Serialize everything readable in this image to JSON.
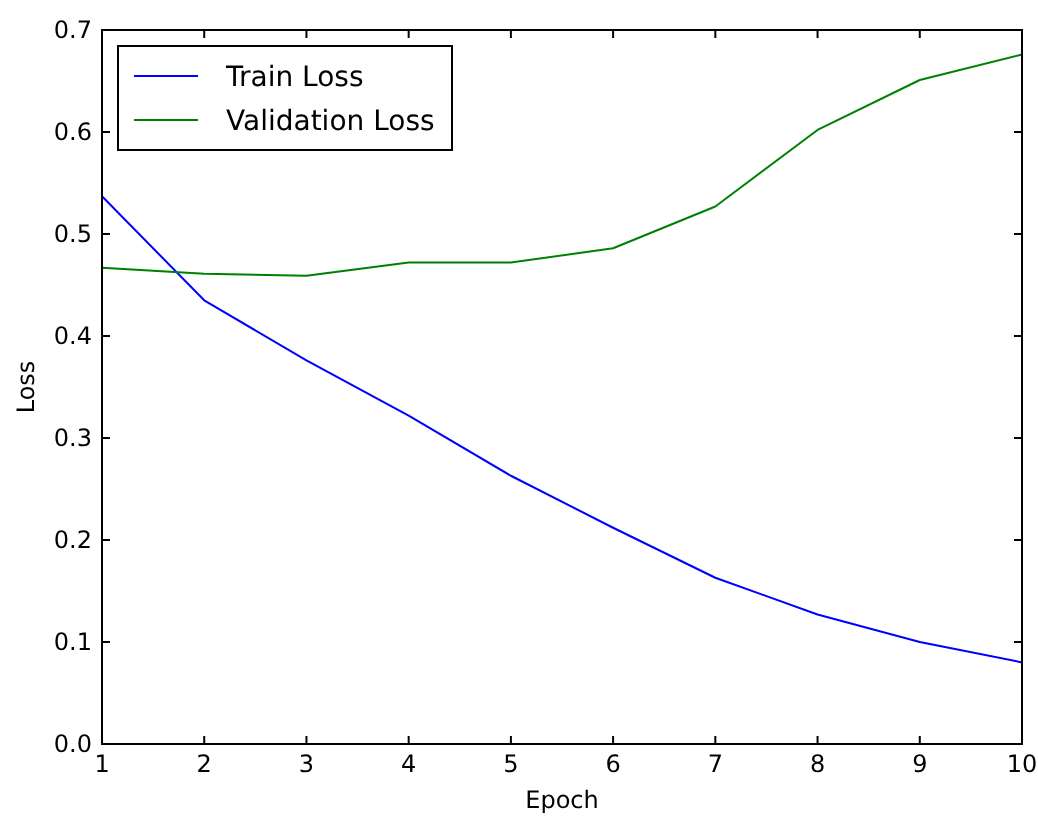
{
  "chart_data": {
    "type": "line",
    "xlabel": "Epoch",
    "ylabel": "Loss",
    "x": [
      1,
      2,
      3,
      4,
      5,
      6,
      7,
      8,
      9,
      10
    ],
    "series": [
      {
        "name": "Train Loss",
        "color": "#0000ff",
        "values": [
          0.537,
          0.435,
          0.376,
          0.322,
          0.263,
          0.212,
          0.163,
          0.127,
          0.1,
          0.08
        ]
      },
      {
        "name": "Validation Loss",
        "color": "#008000",
        "values": [
          0.467,
          0.461,
          0.459,
          0.472,
          0.472,
          0.486,
          0.527,
          0.602,
          0.651,
          0.676
        ]
      }
    ],
    "xlim": [
      1,
      10
    ],
    "xticks": [
      1,
      2,
      3,
      4,
      5,
      6,
      7,
      8,
      9,
      10
    ],
    "ylim": [
      0,
      0.7
    ],
    "yticks": [
      {
        "value": 0,
        "label": "0.0"
      },
      {
        "value": 0.1,
        "label": "0.1"
      },
      {
        "value": 0.2,
        "label": "0.2"
      },
      {
        "value": 0.3,
        "label": "0.3"
      },
      {
        "value": 0.4,
        "label": "0.4"
      },
      {
        "value": 0.5,
        "label": "0.5"
      },
      {
        "value": 0.6,
        "label": "0.6"
      },
      {
        "value": 0.7,
        "label": "0.7"
      }
    ],
    "legend": "top left",
    "grid": false,
    "marker": "none",
    "line_style": "solid"
  }
}
